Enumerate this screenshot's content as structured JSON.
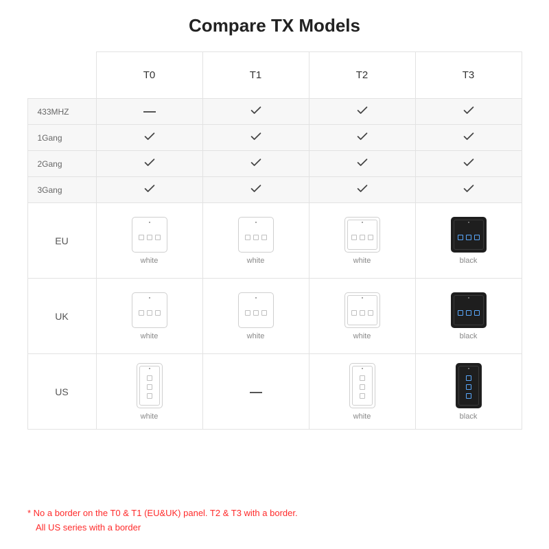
{
  "title": "Compare TX Models",
  "columns": [
    "T0",
    "T1",
    "T2",
    "T3"
  ],
  "feature_rows": [
    {
      "label": "433MHZ",
      "cells": [
        "dash",
        "check",
        "check",
        "check"
      ]
    },
    {
      "label": "1Gang",
      "cells": [
        "check",
        "check",
        "check",
        "check"
      ]
    },
    {
      "label": "2Gang",
      "cells": [
        "check",
        "check",
        "check",
        "check"
      ]
    },
    {
      "label": "3Gang",
      "cells": [
        "check",
        "check",
        "check",
        "check"
      ]
    }
  ],
  "panel_rows": [
    {
      "label": "EU",
      "shape": "sq",
      "cells": [
        {
          "present": true,
          "color": "white",
          "double": false,
          "caption": "white"
        },
        {
          "present": true,
          "color": "white",
          "double": false,
          "caption": "white"
        },
        {
          "present": true,
          "color": "white",
          "double": true,
          "caption": "white"
        },
        {
          "present": true,
          "color": "black",
          "double": true,
          "caption": "black"
        }
      ]
    },
    {
      "label": "UK",
      "shape": "sq",
      "cells": [
        {
          "present": true,
          "color": "white",
          "double": false,
          "caption": "white"
        },
        {
          "present": true,
          "color": "white",
          "double": false,
          "caption": "white"
        },
        {
          "present": true,
          "color": "white",
          "double": true,
          "caption": "white"
        },
        {
          "present": true,
          "color": "black",
          "double": true,
          "caption": "black"
        }
      ]
    },
    {
      "label": "US",
      "shape": "us",
      "cells": [
        {
          "present": true,
          "color": "white",
          "double": true,
          "caption": "white"
        },
        {
          "present": false
        },
        {
          "present": true,
          "color": "white",
          "double": true,
          "caption": "white"
        },
        {
          "present": true,
          "color": "black",
          "double": true,
          "caption": "black"
        }
      ]
    }
  ],
  "footnote": {
    "line1": "* No a border on the T0 & T1 (EU&UK) panel. T2 & T3 with a border.",
    "line2": "All US series with a border"
  },
  "colors": {
    "background": "#ffffff",
    "border": "#e2e2e2",
    "feat_bg": "#f7f7f7",
    "text": "#555555",
    "heading": "#222222",
    "footnote": "#ff2a2a",
    "panel_white_border": "#cfcfcf",
    "panel_black": "#1e1e1e",
    "black_btn_accent": "#5aa9ff"
  }
}
